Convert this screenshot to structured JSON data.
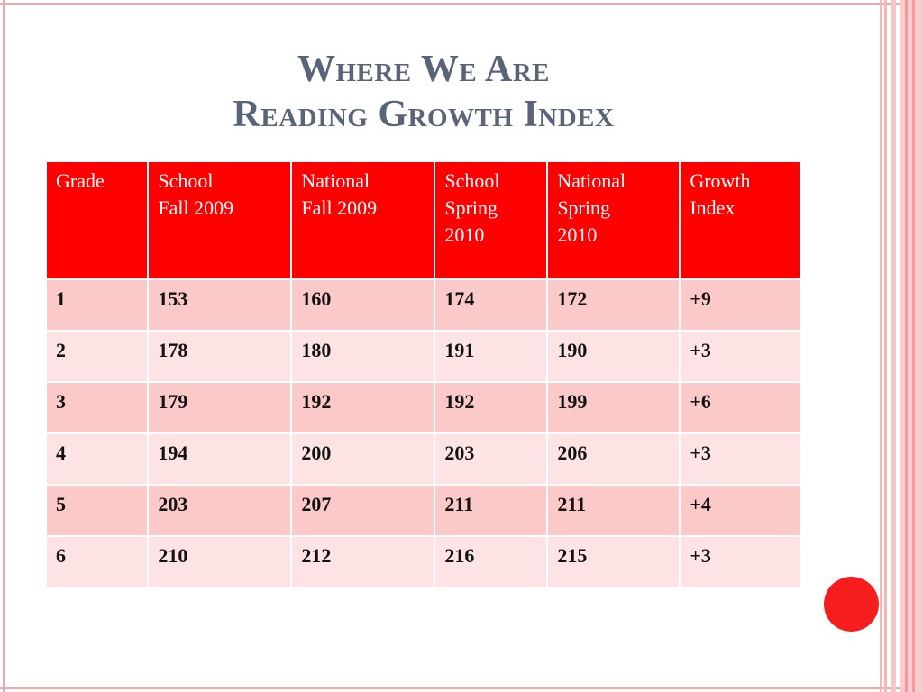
{
  "slide": {
    "title_line1": "Where We Are",
    "title_line2": "Reading Growth Index"
  },
  "table": {
    "headers": [
      [
        "Grade"
      ],
      [
        "School",
        "Fall 2009"
      ],
      [
        "National",
        "Fall 2009"
      ],
      [
        "School",
        "Spring",
        "2010"
      ],
      [
        "National",
        "Spring",
        "2010"
      ],
      [
        "Growth",
        "Index"
      ]
    ],
    "rows": [
      [
        "1",
        "153",
        "160",
        "174",
        "172",
        "+9"
      ],
      [
        "2",
        "178",
        "180",
        "191",
        "190",
        "+3"
      ],
      [
        "3",
        "179",
        "192",
        "192",
        "199",
        "+6"
      ],
      [
        "4",
        "194",
        "200",
        "203",
        "206",
        "+3"
      ],
      [
        "5",
        "203",
        "207",
        "211",
        "211",
        "+4"
      ],
      [
        "6",
        "210",
        "212",
        "216",
        "215",
        "+3"
      ]
    ]
  },
  "colors": {
    "header_bg": "#ff0000",
    "row_odd_bg": "#fcc9c9",
    "row_even_bg": "#fde3e3",
    "title_color": "#5a6478",
    "accent_circle": "#f51d1d"
  }
}
